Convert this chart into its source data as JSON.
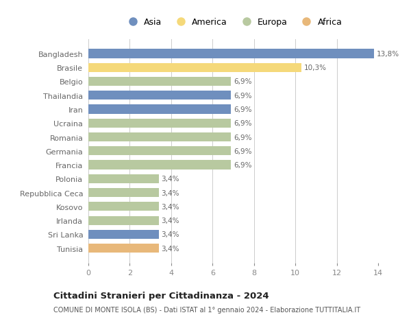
{
  "countries": [
    "Bangladesh",
    "Brasile",
    "Belgio",
    "Thailandia",
    "Iran",
    "Ucraina",
    "Romania",
    "Germania",
    "Francia",
    "Polonia",
    "Repubblica Ceca",
    "Kosovo",
    "Irlanda",
    "Sri Lanka",
    "Tunisia"
  ],
  "values": [
    13.8,
    10.3,
    6.9,
    6.9,
    6.9,
    6.9,
    6.9,
    6.9,
    6.9,
    3.4,
    3.4,
    3.4,
    3.4,
    3.4,
    3.4
  ],
  "continents": [
    "Asia",
    "America",
    "Europa",
    "Asia",
    "Asia",
    "Europa",
    "Europa",
    "Europa",
    "Europa",
    "Europa",
    "Europa",
    "Europa",
    "Europa",
    "Asia",
    "Africa"
  ],
  "colors": {
    "Asia": "#6f8fbe",
    "America": "#f5d97a",
    "Europa": "#b8c9a0",
    "Africa": "#e8b87a"
  },
  "title": "Cittadini Stranieri per Cittadinanza - 2024",
  "subtitle": "COMUNE DI MONTE ISOLA (BS) - Dati ISTAT al 1° gennaio 2024 - Elaborazione TUTTITALIA.IT",
  "xlim": [
    0,
    14
  ],
  "xticks": [
    0,
    2,
    4,
    6,
    8,
    10,
    12,
    14
  ],
  "bar_height": 0.65,
  "background_color": "#ffffff",
  "grid_color": "#cccccc",
  "tick_color": "#888888",
  "label_color": "#666666",
  "title_color": "#222222",
  "subtitle_color": "#555555"
}
